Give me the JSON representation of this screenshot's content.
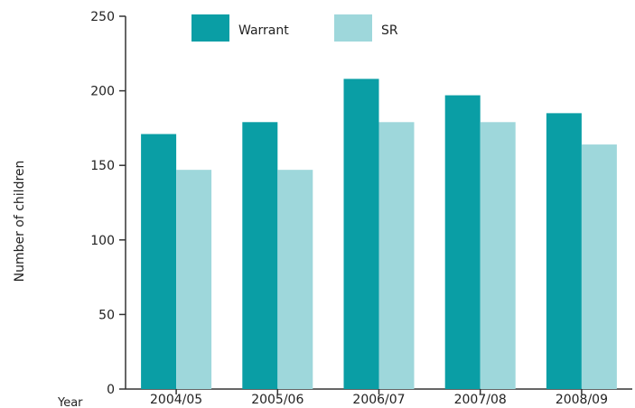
{
  "chart_data": {
    "type": "bar",
    "title": "",
    "xlabel": "Year",
    "ylabel": "Number of children",
    "categories": [
      "2004/05",
      "2005/06",
      "2006/07",
      "2007/08",
      "2008/09"
    ],
    "series": [
      {
        "name": "Warrant",
        "values": [
          171,
          179,
          208,
          197,
          185
        ],
        "color": "#0a9ea5"
      },
      {
        "name": "SR",
        "values": [
          147,
          147,
          179,
          179,
          164
        ],
        "color": "#9ed7db"
      }
    ],
    "ylim": [
      0,
      250
    ],
    "yticks": [
      0,
      50,
      100,
      150,
      200,
      250
    ],
    "legend_position": "top-center",
    "grid": false
  }
}
